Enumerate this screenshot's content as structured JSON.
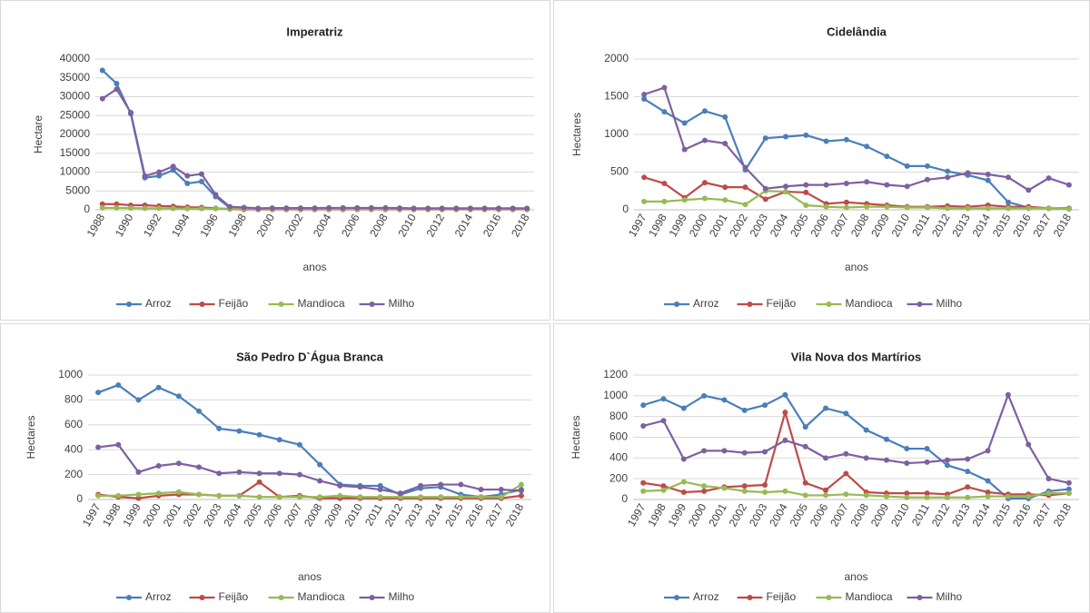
{
  "chart_data": [
    {
      "type": "line",
      "title": "Imperatriz",
      "y_label": "Hectare",
      "x_label": "anos",
      "categories": [
        "1988",
        null,
        "1990",
        null,
        "1992",
        null,
        "1994",
        null,
        "1996",
        null,
        "1998",
        null,
        "2000",
        null,
        "2002",
        null,
        "2004",
        null,
        "2006",
        null,
        "2008",
        null,
        "2010",
        null,
        "2012",
        null,
        "2014",
        null,
        "2016",
        null,
        "2018"
      ],
      "ylim": [
        0,
        40000
      ],
      "yticks": [
        0,
        5000,
        10000,
        15000,
        20000,
        25000,
        30000,
        35000,
        40000
      ],
      "series": [
        {
          "name": "Arroz",
          "color": "#4a7ebb",
          "values": [
            37000,
            33500,
            25500,
            8500,
            9000,
            10500,
            7000,
            7500,
            3500,
            500,
            400,
            300,
            300,
            300,
            300,
            300,
            300,
            300,
            300,
            300,
            300,
            300,
            300,
            300,
            300,
            300,
            300,
            300,
            300,
            300,
            300
          ]
        },
        {
          "name": "Feijão",
          "color": "#be4b48",
          "values": [
            1500,
            1500,
            1200,
            1200,
            1000,
            900,
            700,
            600,
            400,
            200,
            100,
            100,
            100,
            100,
            100,
            100,
            100,
            100,
            100,
            100,
            100,
            100,
            100,
            100,
            100,
            100,
            100,
            100,
            100,
            100,
            100
          ]
        },
        {
          "name": "Mandioca",
          "color": "#98b954",
          "values": [
            500,
            500,
            450,
            400,
            400,
            350,
            300,
            300,
            300,
            300,
            250,
            250,
            250,
            250,
            250,
            250,
            250,
            250,
            200,
            200,
            200,
            200,
            200,
            200,
            200,
            200,
            200,
            200,
            200,
            200,
            200
          ]
        },
        {
          "name": "Milho",
          "color": "#7d60a0",
          "values": [
            29500,
            32000,
            25800,
            9000,
            10000,
            11500,
            9000,
            9500,
            4000,
            800,
            600,
            400,
            450,
            450,
            450,
            450,
            500,
            500,
            500,
            500,
            500,
            450,
            400,
            400,
            400,
            400,
            400,
            400,
            400,
            400,
            400
          ]
        }
      ]
    },
    {
      "type": "line",
      "title": "Cidelândia",
      "y_label": "Hectares",
      "x_label": "anos",
      "categories": [
        "1997",
        "1998",
        "1999",
        "2000",
        "2001",
        "2002",
        "2003",
        "2004",
        "2005",
        "2006",
        "2007",
        "2008",
        "2009",
        "2010",
        "2011",
        "2012",
        "2013",
        "2014",
        "2015",
        "2016",
        "2017",
        "2018"
      ],
      "ylim": [
        0,
        2000
      ],
      "yticks": [
        0,
        500,
        1000,
        1500,
        2000
      ],
      "series": [
        {
          "name": "Arroz",
          "color": "#4a7ebb",
          "values": [
            1470,
            1300,
            1150,
            1310,
            1230,
            530,
            950,
            970,
            990,
            910,
            930,
            840,
            710,
            580,
            580,
            510,
            460,
            390,
            100,
            30,
            20,
            10
          ]
        },
        {
          "name": "Feijão",
          "color": "#be4b48",
          "values": [
            430,
            350,
            160,
            360,
            300,
            300,
            140,
            240,
            230,
            80,
            100,
            80,
            60,
            40,
            40,
            50,
            40,
            60,
            40,
            40,
            20,
            20
          ]
        },
        {
          "name": "Mandioca",
          "color": "#98b954",
          "values": [
            110,
            110,
            130,
            150,
            130,
            70,
            250,
            240,
            60,
            40,
            30,
            40,
            40,
            30,
            30,
            20,
            20,
            20,
            20,
            20,
            20,
            10
          ]
        },
        {
          "name": "Milho",
          "color": "#7d60a0",
          "values": [
            1530,
            1620,
            800,
            920,
            880,
            560,
            280,
            310,
            330,
            330,
            350,
            370,
            330,
            310,
            400,
            430,
            490,
            470,
            430,
            260,
            420,
            330
          ]
        }
      ]
    },
    {
      "type": "line",
      "title": "São Pedro D`Água Branca",
      "y_label": "Hectares",
      "x_label": "anos",
      "categories": [
        "1997",
        "1998",
        "1999",
        "2000",
        "2001",
        "2002",
        "2003",
        "2004",
        "2005",
        "2006",
        "2007",
        "2008",
        "2009",
        "2010",
        "2011",
        "2012",
        "2013",
        "2014",
        "2015",
        "2016",
        "2017",
        "2018"
      ],
      "ylim": [
        0,
        1000
      ],
      "yticks": [
        0,
        200,
        400,
        600,
        800,
        1000
      ],
      "series": [
        {
          "name": "Arroz",
          "color": "#4a7ebb",
          "values": [
            860,
            920,
            800,
            900,
            830,
            710,
            570,
            550,
            520,
            480,
            440,
            280,
            120,
            110,
            110,
            40,
            90,
            100,
            40,
            20,
            40,
            80
          ]
        },
        {
          "name": "Feijão",
          "color": "#be4b48",
          "values": [
            40,
            20,
            10,
            30,
            40,
            40,
            30,
            30,
            140,
            20,
            30,
            10,
            10,
            10,
            10,
            10,
            10,
            10,
            10,
            10,
            10,
            30
          ]
        },
        {
          "name": "Mandioca",
          "color": "#98b954",
          "values": [
            30,
            30,
            40,
            50,
            60,
            40,
            30,
            30,
            20,
            20,
            20,
            20,
            30,
            20,
            20,
            20,
            20,
            20,
            20,
            20,
            20,
            120
          ]
        },
        {
          "name": "Milho",
          "color": "#7d60a0",
          "values": [
            420,
            440,
            220,
            270,
            290,
            260,
            210,
            220,
            210,
            210,
            200,
            150,
            110,
            100,
            80,
            50,
            110,
            120,
            120,
            80,
            80,
            70
          ]
        }
      ]
    },
    {
      "type": "line",
      "title": "Vila Nova dos Martírios",
      "y_label": "Hectares",
      "x_label": "anos",
      "categories": [
        "1997",
        "1998",
        "1999",
        "2000",
        "2001",
        "2002",
        "2003",
        "2004",
        "2005",
        "2006",
        "2007",
        "2008",
        "2009",
        "2010",
        "2011",
        "2012",
        "2013",
        "2014",
        "2015",
        "2016",
        "2017",
        "2018"
      ],
      "ylim": [
        0,
        1200
      ],
      "yticks": [
        0,
        200,
        400,
        600,
        800,
        1000,
        1200
      ],
      "series": [
        {
          "name": "Arroz",
          "color": "#4a7ebb",
          "values": [
            910,
            970,
            880,
            1000,
            960,
            860,
            910,
            1010,
            700,
            880,
            830,
            670,
            580,
            490,
            490,
            330,
            270,
            180,
            10,
            10,
            80,
            100
          ]
        },
        {
          "name": "Feijão",
          "color": "#be4b48",
          "values": [
            160,
            130,
            70,
            80,
            120,
            130,
            140,
            840,
            160,
            90,
            250,
            70,
            60,
            60,
            60,
            50,
            120,
            70,
            50,
            50,
            40,
            60
          ]
        },
        {
          "name": "Mandioca",
          "color": "#98b954",
          "values": [
            80,
            90,
            170,
            130,
            110,
            80,
            70,
            80,
            40,
            40,
            50,
            40,
            30,
            20,
            20,
            20,
            20,
            30,
            30,
            30,
            60,
            60
          ]
        },
        {
          "name": "Milho",
          "color": "#7d60a0",
          "values": [
            710,
            760,
            390,
            470,
            470,
            450,
            460,
            570,
            510,
            400,
            440,
            400,
            380,
            350,
            360,
            380,
            390,
            470,
            1010,
            530,
            200,
            160
          ]
        }
      ]
    }
  ]
}
